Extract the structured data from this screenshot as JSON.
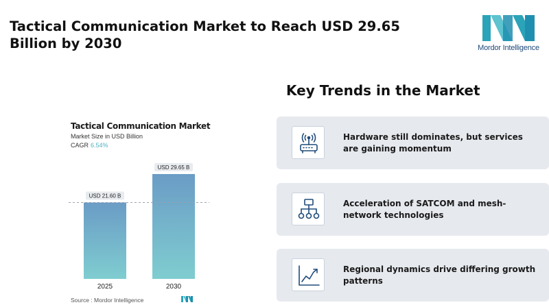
{
  "header": {
    "title": "Tactical Communication Market to Reach USD 29.65 Billion by 2030",
    "logo_text": "Mordor Intelligence"
  },
  "chart_data": {
    "type": "bar",
    "title": "Tactical Communication Market",
    "subtitle": "Market Size in USD Billion",
    "cagr_label": "CAGR",
    "cagr_value": "6.54%",
    "categories": [
      "2025",
      "2030"
    ],
    "values": [
      21.6,
      29.65
    ],
    "data_labels": [
      "USD 21.60 B",
      "USD 29.65 B"
    ],
    "reference_line": 21.6,
    "ylim": [
      0,
      31
    ],
    "grid": false,
    "colors": {
      "bar_top": "#6b9cc6",
      "bar_bottom": "#7fcdd0",
      "label_bg": "#e8ebef",
      "cagr": "#4fb3c0"
    }
  },
  "source": {
    "text": "Source :  Mordor Intelligence"
  },
  "trends": {
    "title": "Key Trends in the Market",
    "items": [
      {
        "icon": "router-icon",
        "text": "Hardware still dominates, but services are gaining momentum"
      },
      {
        "icon": "network-hierarchy-icon",
        "text": "Acceleration of SATCOM and mesh-network technologies"
      },
      {
        "icon": "growth-chart-icon",
        "text": "Regional dynamics drive differing growth patterns"
      }
    ]
  },
  "colors": {
    "card_bg": "#e6e9ee",
    "icon_stroke": "#1f4a7a",
    "logo_teal": "#2ba3b8",
    "logo_navy": "#1f4a7a"
  }
}
